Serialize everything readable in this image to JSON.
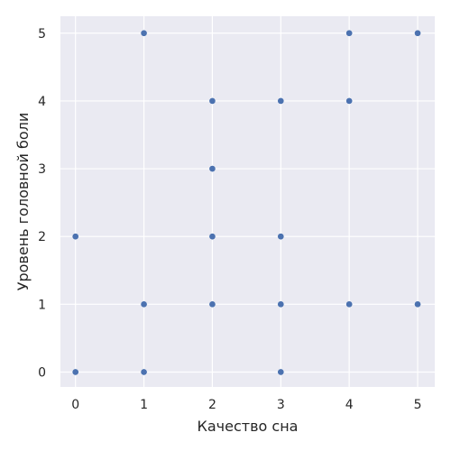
{
  "chart_data": {
    "type": "scatter",
    "xlabel": "Качество сна",
    "ylabel": "Уровень головной боли",
    "xlim": [
      -0.22,
      5.25
    ],
    "ylim": [
      -0.22,
      5.25
    ],
    "x_ticks": [
      0,
      1,
      2,
      3,
      4,
      5
    ],
    "y_ticks": [
      0,
      1,
      2,
      3,
      4,
      5
    ],
    "grid": true,
    "background_color": "#eaeaf2",
    "grid_color": "#ffffff",
    "marker_color": "#4c72b0",
    "points": [
      {
        "x": 0,
        "y": 0
      },
      {
        "x": 0,
        "y": 2
      },
      {
        "x": 1,
        "y": 0
      },
      {
        "x": 1,
        "y": 1
      },
      {
        "x": 1,
        "y": 5
      },
      {
        "x": 2,
        "y": 1
      },
      {
        "x": 2,
        "y": 2
      },
      {
        "x": 2,
        "y": 3
      },
      {
        "x": 2,
        "y": 4
      },
      {
        "x": 3,
        "y": 0
      },
      {
        "x": 3,
        "y": 1
      },
      {
        "x": 3,
        "y": 2
      },
      {
        "x": 3,
        "y": 4
      },
      {
        "x": 4,
        "y": 1
      },
      {
        "x": 4,
        "y": 4
      },
      {
        "x": 4,
        "y": 5
      },
      {
        "x": 5,
        "y": 1
      },
      {
        "x": 5,
        "y": 5
      }
    ]
  }
}
